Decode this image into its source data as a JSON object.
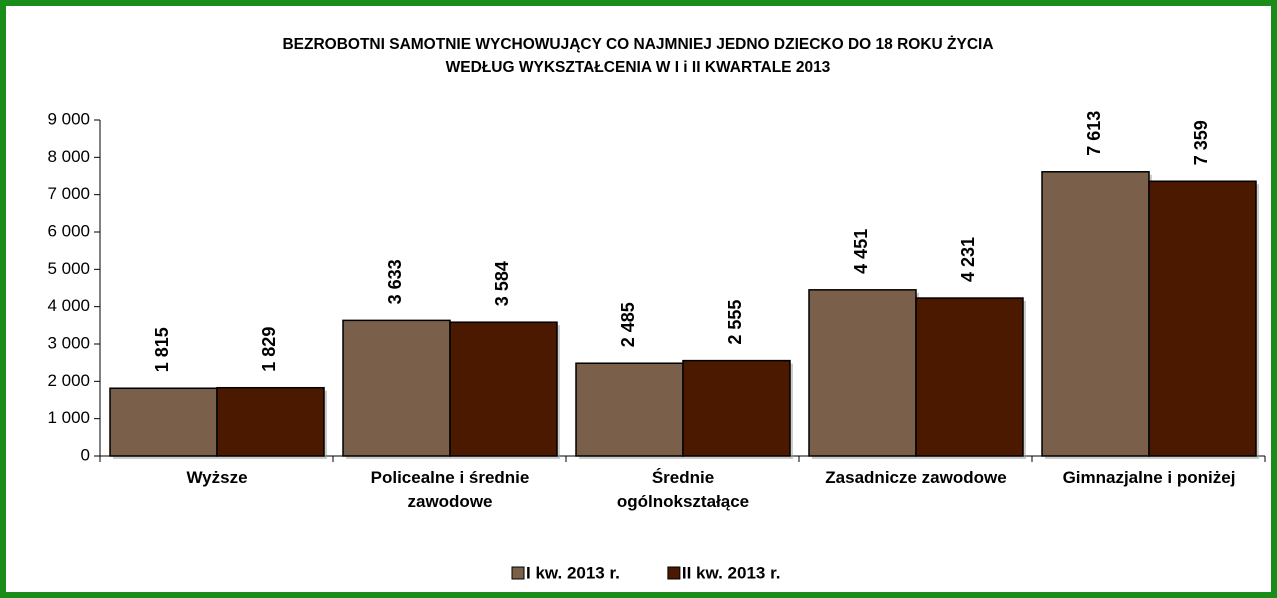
{
  "chart_data": {
    "type": "bar",
    "title": [
      "BEZROBOTNI SAMOTNIE WYCHOWUJĄCY CO NAJMNIEJ JEDNO DZIECKO DO 18 ROKU ŻYCIA",
      "WEDŁUG  WYKSZTAŁCENIA W I i II KWARTALE 2013"
    ],
    "categories": [
      "Wyższe",
      "Policealne i średnie\nzawodowe",
      "Średnie\nogólnokształące",
      "Zasadnicze zawodowe",
      "Gimnazjalne i poniżej"
    ],
    "series": [
      {
        "name": "I kw. 2013 r.",
        "color": "#7a604a",
        "values": [
          1815,
          3633,
          2485,
          4451,
          7613
        ],
        "value_labels": [
          "1 815",
          "3 633",
          "2 485",
          "4 451",
          "7 613"
        ]
      },
      {
        "name": "II kw. 2013 r.",
        "color": "#4a1900",
        "values": [
          1829,
          3584,
          2555,
          4231,
          7359
        ],
        "value_labels": [
          "1 829",
          "3 584",
          "2 555",
          "4 231",
          "7 359"
        ]
      }
    ],
    "ylim": [
      0,
      9000
    ],
    "yticks": [
      0,
      {
        "value": 1000,
        "label": "1 000"
      },
      {
        "value": 2000,
        "label": "2 000"
      },
      {
        "value": 3000,
        "label": "3 000"
      },
      {
        "value": 4000,
        "label": "4 000"
      },
      {
        "value": 5000,
        "label": "5 000"
      },
      {
        "value": 6000,
        "label": "6 000"
      },
      {
        "value": 7000,
        "label": "7 000"
      },
      {
        "value": 8000,
        "label": "8 000"
      },
      {
        "value": 9000,
        "label": "9 000"
      }
    ],
    "legend": "bottom"
  }
}
